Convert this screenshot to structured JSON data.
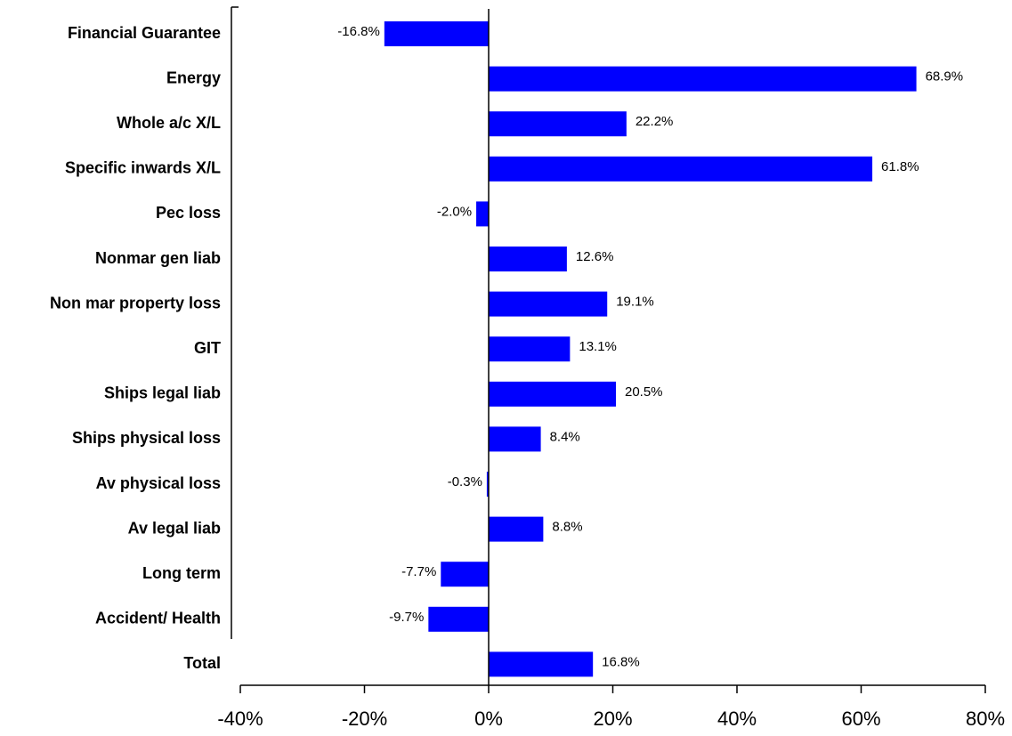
{
  "chart_data": {
    "type": "barh",
    "categories": [
      "Financial Guarantee",
      "Energy",
      "Whole a/c X/L",
      "Specific inwards X/L",
      "Pec loss",
      "Nonmar gen liab",
      "Non mar property loss",
      "GIT",
      "Ships legal liab",
      "Ships physical loss",
      "Av physical loss",
      "Av legal liab",
      "Long term",
      "Accident/ Health",
      "Total"
    ],
    "values": [
      -16.8,
      68.9,
      22.2,
      61.8,
      -2.0,
      12.6,
      19.1,
      13.1,
      20.5,
      8.4,
      -0.3,
      8.8,
      -7.7,
      -9.7,
      16.8
    ],
    "value_labels": [
      "-16.8%",
      "68.9%",
      "22.2%",
      "61.8%",
      "-2.0%",
      "12.6%",
      "19.1%",
      "13.1%",
      "20.5%",
      "8.4%",
      "-0.3%",
      "8.8%",
      "-7.7%",
      "-9.7%",
      "16.8%"
    ],
    "color": "#0000ff",
    "xlim": [
      -40,
      80
    ],
    "xticks": [
      {
        "value": -40,
        "label": "-40%"
      },
      {
        "value": -20,
        "label": "-20%"
      },
      {
        "value": 0,
        "label": "0%"
      },
      {
        "value": 20,
        "label": "20%"
      },
      {
        "value": 40,
        "label": "40%"
      },
      {
        "value": 60,
        "label": "60%"
      },
      {
        "value": 80,
        "label": "80%"
      }
    ]
  }
}
